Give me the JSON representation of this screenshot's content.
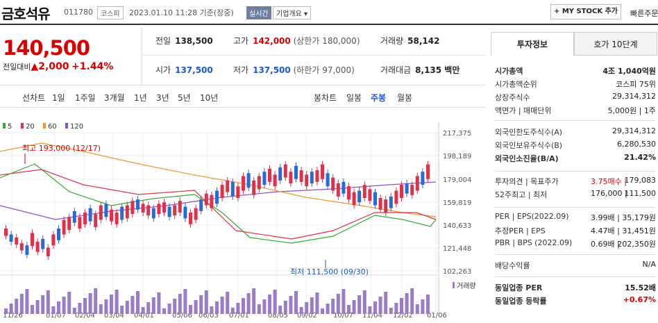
{
  "header": {
    "name": "금호석유",
    "code": "011780",
    "market": "코스피",
    "timestamp": "2023.01.10 11:28 기준(장중)",
    "live": "실시간",
    "company_info": "기업개요",
    "my_stock": "MY STOCK 추가",
    "quick": "빠른주문"
  },
  "quote": {
    "price": "140,500",
    "change_label": "전일대비",
    "change": "▲2,000",
    "change_pct": "+1.44%",
    "prev_close_label": "전일",
    "prev_close": "138,500",
    "high_label": "고가",
    "high": "142,000",
    "upper_limit": "(상한가 180,000)",
    "volume_label": "거래량",
    "volume": "58,142",
    "open_label": "시가",
    "open": "137,500",
    "low_label": "저가",
    "low": "137,500",
    "lower_limit": "(하한가 97,000)",
    "amount_label": "거래대금",
    "amount": "8,135 백만"
  },
  "period_tabs": [
    "선차트",
    "1일",
    "1주일",
    "3개월",
    "1년",
    "3년",
    "5년",
    "10년"
  ],
  "candle_tabs": [
    "봉차트",
    "일봉",
    "주봉",
    "월봉"
  ],
  "active_candle_tab": "주봉",
  "side": {
    "tab_active": "투자정보",
    "tab_other": "호가 10단계",
    "rows": [
      {
        "label": "시가총액",
        "value": "4조 1,040억원"
      },
      {
        "label": "시가총액순위",
        "value": "코스피 75위"
      },
      {
        "label": "상장주식수",
        "value": "29,314,312"
      },
      {
        "label": "액면가 | 매매단위",
        "value": "5,000원 | 1주"
      },
      {
        "label": "외국인한도주식수(A)",
        "value": "29,314,312"
      },
      {
        "label": "외국인보유주식수(B)",
        "value": "6,280,530"
      },
      {
        "label": "외국인소진율(B/A)",
        "value": "21.42%"
      },
      {
        "label": "투자의견 | 목표주가",
        "mid": "3.75매수 |",
        "value": "179,083"
      },
      {
        "label": "52주최고 | 최저",
        "mid": "176,000 |",
        "value": "111,500"
      },
      {
        "label": "PER | EPS(2022.09)",
        "mid": "3.99배 |",
        "value": "35,179원"
      },
      {
        "label": "추정PER | EPS",
        "mid": "4.47배 |",
        "value": "31,451원"
      },
      {
        "label": "PBR | BPS (2022.09)",
        "mid": "0.69배 |",
        "value": "202,350원"
      },
      {
        "label": "배당수익률",
        "value": "N/A"
      },
      {
        "label": "동일업종 PER",
        "value": "15.52배"
      },
      {
        "label": "동일업종 등락률",
        "value": "+0.67%"
      }
    ]
  },
  "chart_data": {
    "type": "candlestick",
    "legend": [
      "5",
      "20",
      "60",
      "120"
    ],
    "legend_colors": [
      "#38a830",
      "#e0304a",
      "#f0962a",
      "#8a4fd0"
    ],
    "y_ticks": [
      "217,375",
      "198,189",
      "179,004",
      "159,819",
      "140,633",
      "121,448",
      "102,263"
    ],
    "x_ticks": [
      "11/26",
      "01/07",
      "02/04",
      "03/04",
      "04/01",
      "05/06",
      "06/03",
      "07/01",
      "08/05",
      "09/02",
      "10/07",
      "11/04",
      "12/02",
      "01/06"
    ],
    "annotation_high": "최고 193,000 (12/17)",
    "annotation_low": "최저 111,500 (09/30)",
    "volume_label": "거래량"
  }
}
